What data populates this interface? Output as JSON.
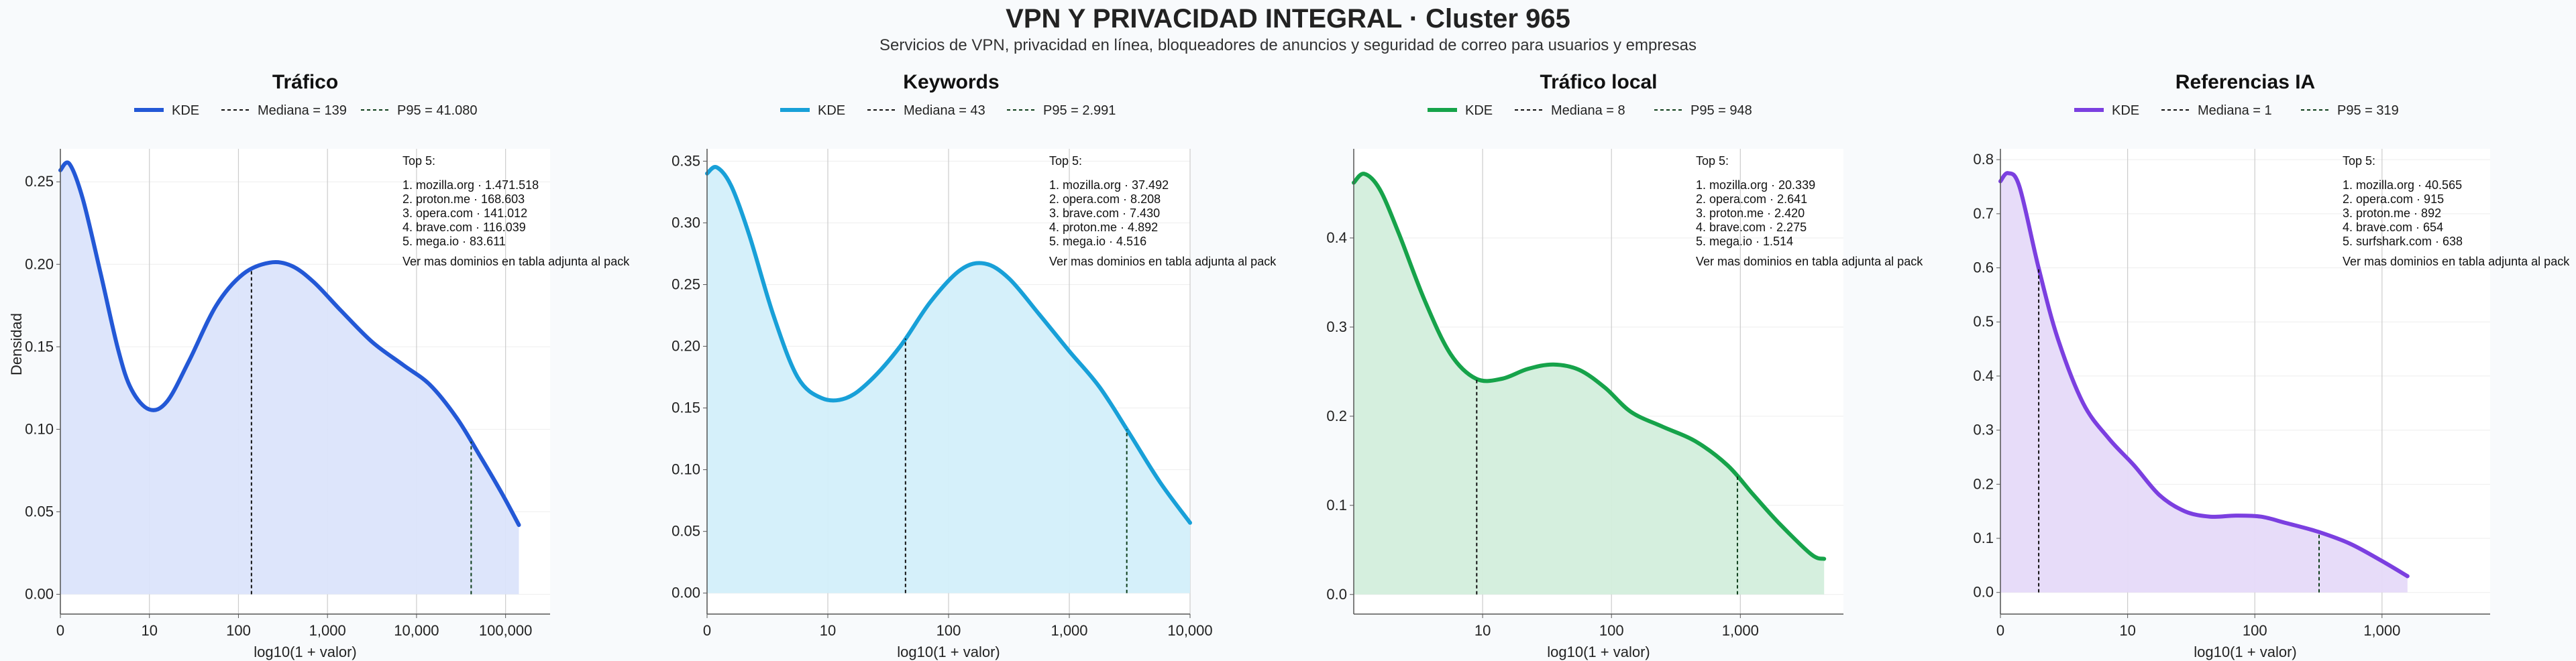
{
  "page": {
    "title": "VPN Y PRIVACIDAD INTEGRAL · Cluster 965",
    "subtitle": "Servicios de VPN, privacidad en línea, bloqueadores de anuncios y seguridad de correo para usuarios y empresas",
    "ylabel": "Densidad"
  },
  "chart_data": [
    {
      "type": "area",
      "title": "Tráfico",
      "xlabel": "log10(1 + valor)",
      "ylabel": "Densidad",
      "color": "#2358d6",
      "fill": "#dbe4fb",
      "x_scale": "log10(1+x)",
      "xlim": [
        0,
        5.5
      ],
      "ylim": [
        -0.012,
        0.27
      ],
      "xticks": [
        {
          "v": 0,
          "label": "0"
        },
        {
          "v": 1,
          "label": "10"
        },
        {
          "v": 2,
          "label": "100"
        },
        {
          "v": 3,
          "label": "1,000"
        },
        {
          "v": 4,
          "label": "10,000"
        },
        {
          "v": 5,
          "label": "100,000"
        }
      ],
      "yticks": [
        0,
        0.05,
        0.1,
        0.15,
        0.2,
        0.25
      ],
      "ytick_labels": [
        "0.00",
        "0.05",
        "0.10",
        "0.15",
        "0.20",
        "0.25"
      ],
      "grid": true,
      "legend": {
        "kde": "KDE",
        "median": "Mediana = 139",
        "p95": "P95 = 41.080"
      },
      "median": 139,
      "p95": 41080,
      "kde": [
        [
          0,
          0.257
        ],
        [
          0.1,
          0.261
        ],
        [
          0.25,
          0.24
        ],
        [
          0.45,
          0.195
        ],
        [
          0.65,
          0.148
        ],
        [
          0.8,
          0.124
        ],
        [
          1.0,
          0.112
        ],
        [
          1.2,
          0.117
        ],
        [
          1.45,
          0.142
        ],
        [
          1.75,
          0.175
        ],
        [
          2.05,
          0.194
        ],
        [
          2.35,
          0.201
        ],
        [
          2.6,
          0.199
        ],
        [
          2.85,
          0.189
        ],
        [
          3.15,
          0.172
        ],
        [
          3.5,
          0.153
        ],
        [
          3.85,
          0.139
        ],
        [
          4.15,
          0.127
        ],
        [
          4.45,
          0.107
        ],
        [
          4.7,
          0.085
        ],
        [
          4.95,
          0.062
        ],
        [
          5.15,
          0.042
        ]
      ],
      "top5": {
        "header": "Top 5:",
        "items": [
          "1. mozilla.org · 1.471.518",
          "2. proton.me · 168.603",
          "3. opera.com · 141.012",
          "4. brave.com · 116.039",
          "5. mega.io · 83.611"
        ],
        "footer": "Ver mas dominios en tabla adjunta al pack"
      }
    },
    {
      "type": "area",
      "title": "Keywords",
      "xlabel": "log10(1 + valor)",
      "ylabel": "",
      "color": "#18a0d8",
      "fill": "#d3effa",
      "x_scale": "log10(1+x)",
      "xlim": [
        0,
        4.0
      ],
      "ylim": [
        -0.017,
        0.36
      ],
      "xticks": [
        {
          "v": 0,
          "label": "0"
        },
        {
          "v": 1,
          "label": "10"
        },
        {
          "v": 2,
          "label": "100"
        },
        {
          "v": 3,
          "label": "1,000"
        },
        {
          "v": 4,
          "label": "10,000"
        }
      ],
      "yticks": [
        0,
        0.05,
        0.1,
        0.15,
        0.2,
        0.25,
        0.3,
        0.35
      ],
      "ytick_labels": [
        "0.00",
        "0.05",
        "0.10",
        "0.15",
        "0.20",
        "0.25",
        "0.30",
        "0.35"
      ],
      "grid": true,
      "legend": {
        "kde": "KDE",
        "median": "Mediana = 43",
        "p95": "P95 = 2.991"
      },
      "median": 43,
      "p95": 2991,
      "kde": [
        [
          0,
          0.34
        ],
        [
          0.08,
          0.345
        ],
        [
          0.2,
          0.33
        ],
        [
          0.35,
          0.29
        ],
        [
          0.55,
          0.225
        ],
        [
          0.75,
          0.175
        ],
        [
          0.95,
          0.158
        ],
        [
          1.15,
          0.158
        ],
        [
          1.35,
          0.172
        ],
        [
          1.6,
          0.2
        ],
        [
          1.85,
          0.236
        ],
        [
          2.1,
          0.262
        ],
        [
          2.3,
          0.267
        ],
        [
          2.5,
          0.255
        ],
        [
          2.75,
          0.226
        ],
        [
          3.0,
          0.196
        ],
        [
          3.25,
          0.167
        ],
        [
          3.5,
          0.129
        ],
        [
          3.75,
          0.09
        ],
        [
          4.0,
          0.057
        ]
      ],
      "top5": {
        "header": "Top 5:",
        "items": [
          "1. mozilla.org · 37.492",
          "2. opera.com · 8.208",
          "3. brave.com · 7.430",
          "4. proton.me · 4.892",
          "5. mega.io · 4.516"
        ],
        "footer": "Ver mas dominios en tabla adjunta al pack"
      }
    },
    {
      "type": "area",
      "title": "Tráfico local",
      "xlabel": "log10(1 + valor)",
      "ylabel": "",
      "color": "#16a34a",
      "fill": "#d3eedc",
      "x_scale": "log10(1+x)",
      "xlim": [
        0,
        3.8
      ],
      "ylim": [
        -0.022,
        0.5
      ],
      "xticks": [
        {
          "v": 1,
          "label": "10"
        },
        {
          "v": 2,
          "label": "100"
        },
        {
          "v": 3,
          "label": "1,000"
        }
      ],
      "yticks": [
        0,
        0.1,
        0.2,
        0.3,
        0.4
      ],
      "ytick_labels": [
        "0.0",
        "0.1",
        "0.2",
        "0.3",
        "0.4"
      ],
      "grid": true,
      "legend": {
        "kde": "KDE",
        "median": "Mediana = 8",
        "p95": "P95 = 948"
      },
      "median": 8,
      "p95": 948,
      "kde": [
        [
          0,
          0.462
        ],
        [
          0.08,
          0.472
        ],
        [
          0.2,
          0.455
        ],
        [
          0.35,
          0.405
        ],
        [
          0.55,
          0.33
        ],
        [
          0.75,
          0.27
        ],
        [
          0.95,
          0.242
        ],
        [
          1.15,
          0.242
        ],
        [
          1.35,
          0.253
        ],
        [
          1.55,
          0.258
        ],
        [
          1.75,
          0.252
        ],
        [
          1.95,
          0.232
        ],
        [
          2.15,
          0.205
        ],
        [
          2.4,
          0.188
        ],
        [
          2.65,
          0.172
        ],
        [
          2.9,
          0.145
        ],
        [
          3.1,
          0.112
        ],
        [
          3.3,
          0.08
        ],
        [
          3.55,
          0.045
        ],
        [
          3.65,
          0.04
        ]
      ],
      "top5": {
        "header": "Top 5:",
        "items": [
          "1. mozilla.org · 20.339",
          "2. opera.com · 2.641",
          "3. proton.me · 2.420",
          "4. brave.com · 2.275",
          "5. mega.io · 1.514"
        ],
        "footer": "Ver mas dominios en tabla adjunta al pack"
      }
    },
    {
      "type": "area",
      "title": "Referencias IA",
      "xlabel": "log10(1 + valor)",
      "ylabel": "",
      "color": "#7b3fe0",
      "fill": "#e6daf9",
      "x_scale": "log10(1+x)",
      "xlim": [
        0,
        3.85
      ],
      "ylim": [
        -0.04,
        0.82
      ],
      "xticks": [
        {
          "v": 0,
          "label": "0"
        },
        {
          "v": 1,
          "label": "10"
        },
        {
          "v": 2,
          "label": "100"
        },
        {
          "v": 3,
          "label": "1,000"
        }
      ],
      "yticks": [
        0,
        0.1,
        0.2,
        0.3,
        0.4,
        0.5,
        0.6,
        0.7,
        0.8
      ],
      "ytick_labels": [
        "0.0",
        "0.1",
        "0.2",
        "0.3",
        "0.4",
        "0.5",
        "0.6",
        "0.7",
        "0.8"
      ],
      "grid": true,
      "legend": {
        "kde": "KDE",
        "median": "Mediana = 1",
        "p95": "P95 = 319"
      },
      "median": 1,
      "p95": 319,
      "kde": [
        [
          0,
          0.76
        ],
        [
          0.06,
          0.775
        ],
        [
          0.15,
          0.75
        ],
        [
          0.3,
          0.6
        ],
        [
          0.45,
          0.47
        ],
        [
          0.65,
          0.35
        ],
        [
          0.85,
          0.285
        ],
        [
          1.05,
          0.235
        ],
        [
          1.25,
          0.18
        ],
        [
          1.45,
          0.15
        ],
        [
          1.65,
          0.14
        ],
        [
          1.85,
          0.142
        ],
        [
          2.05,
          0.14
        ],
        [
          2.25,
          0.128
        ],
        [
          2.5,
          0.112
        ],
        [
          2.75,
          0.09
        ],
        [
          3.0,
          0.058
        ],
        [
          3.2,
          0.03
        ]
      ],
      "top5": {
        "header": "Top 5:",
        "items": [
          "1. mozilla.org · 40.565",
          "2. opera.com · 915",
          "3. proton.me · 892",
          "4. brave.com · 654",
          "5. surfshark.com · 638"
        ],
        "footer": "Ver mas dominios en tabla adjunta al pack"
      }
    }
  ]
}
